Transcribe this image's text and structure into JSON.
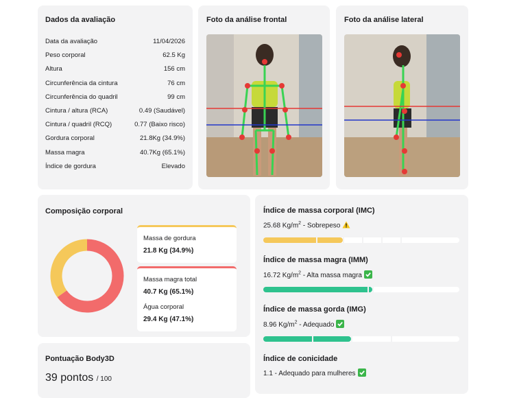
{
  "dados": {
    "title": "Dados da avaliação",
    "rows": [
      [
        "Data da avaliação",
        "11/04/2026"
      ],
      [
        "Peso corporal",
        "62.5 Kg"
      ],
      [
        "Altura",
        "156 cm"
      ],
      [
        "Circunferência da cintura",
        "76 cm"
      ],
      [
        "Circunferência do quadril",
        "99 cm"
      ],
      [
        "Cintura / altura (RCA)",
        "0.49 (Saudável)"
      ],
      [
        "Cintura / quadril (RCQ)",
        "0.77 (Baixo risco)"
      ],
      [
        "Gordura corporal",
        "21.8Kg (34.9%)"
      ],
      [
        "Massa magra",
        "40.7Kg (65.1%)"
      ],
      [
        "Índice de gordura",
        "Elevado"
      ]
    ]
  },
  "foto_frontal": {
    "title": "Foto da análise frontal"
  },
  "foto_lateral": {
    "title": "Foto da análise lateral"
  },
  "composicao": {
    "title": "Composição corporal",
    "segments": [
      {
        "label": "Massa de gordura",
        "value_text": "21.8 Kg (34.9%)",
        "percent": 34.9,
        "color": "#f5c85a"
      },
      {
        "label": "Massa magra total",
        "value_text": "40.7 Kg (65.1%)",
        "percent": 65.1,
        "color": "#f26b6b"
      }
    ],
    "agua": {
      "label": "Água corporal",
      "value_text": "29.4 Kg (47.1%)"
    }
  },
  "indices": [
    {
      "title": "Índice de massa corporal (IMC)",
      "value": "25.68 Kg/m",
      "sup": "2",
      "status": " - Sobrepeso"
    },
    {
      "title": "Índice de massa magra (IMM)",
      "value": "16.72 Kg/m",
      "sup": "2",
      "status": " - Alta massa magra"
    },
    {
      "title": "Índice de massa gorda (IMG)",
      "value": "8.96 Kg/m",
      "sup": "2",
      "status": " - Adequado"
    },
    {
      "title": "Índice de conicidade",
      "value": "1.1 - Adequado para mulheres"
    }
  ],
  "body3d": {
    "title": "Pontuação Body3D",
    "score": "39 pontos",
    "max": "/ 100"
  }
}
